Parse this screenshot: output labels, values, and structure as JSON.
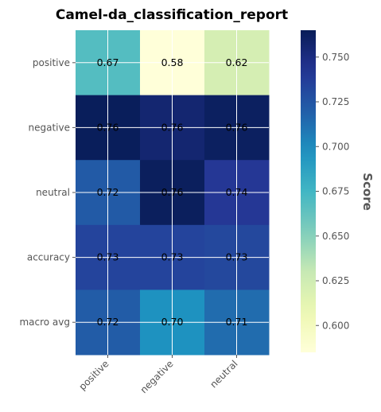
{
  "chart_data": {
    "type": "heatmap",
    "title": "Camel-da_classification_report",
    "rows": [
      "positive",
      "negative",
      "neutral",
      "accuracy",
      "macro avg"
    ],
    "columns": [
      "positive",
      "negative",
      "neutral"
    ],
    "values": [
      [
        0.67,
        0.58,
        0.62
      ],
      [
        0.76,
        0.76,
        0.76
      ],
      [
        0.72,
        0.76,
        0.74
      ],
      [
        0.73,
        0.73,
        0.73
      ],
      [
        0.72,
        0.7,
        0.71
      ]
    ],
    "true_values": [
      [
        0.668,
        0.585,
        0.622
      ],
      [
        0.764,
        0.756,
        0.762
      ],
      [
        0.722,
        0.763,
        0.741
      ],
      [
        0.734,
        0.734,
        0.732
      ],
      [
        0.721,
        0.697,
        0.714
      ]
    ],
    "cell_labels": [
      [
        "0.67",
        "0.58",
        "0.62"
      ],
      [
        "0.76",
        "0.76",
        "0.76"
      ],
      [
        "0.72",
        "0.76",
        "0.74"
      ],
      [
        "0.73",
        "0.73",
        "0.73"
      ],
      [
        "0.72",
        "0.70",
        "0.71"
      ]
    ],
    "colormap": "YlGnBu",
    "vmin": 0.585,
    "vmax": 0.765,
    "colorbar": {
      "label": "Score",
      "ticks": [
        0.6,
        0.625,
        0.65,
        0.675,
        0.7,
        0.725,
        0.75
      ],
      "tick_labels": [
        "0.600",
        "0.625",
        "0.650",
        "0.675",
        "0.700",
        "0.725",
        "0.750"
      ]
    },
    "grid": true,
    "x_tick_rotation": 45
  }
}
